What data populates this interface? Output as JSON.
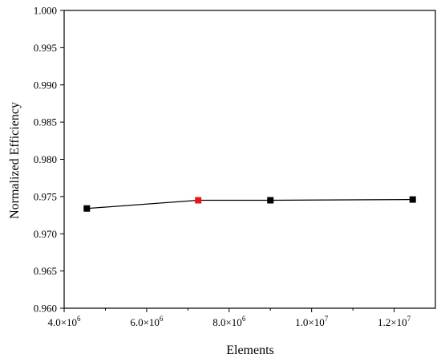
{
  "chart_data": {
    "type": "line",
    "title": "",
    "xlabel": "Elements",
    "ylabel": "Normalized Efficiency",
    "xlim": [
      4000000,
      13000000
    ],
    "ylim": [
      0.96,
      1.0
    ],
    "x_ticks": [
      {
        "value": 4000000,
        "mantissa": "4.0",
        "exp": "6"
      },
      {
        "value": 6000000,
        "mantissa": "6.0",
        "exp": "6"
      },
      {
        "value": 8000000,
        "mantissa": "8.0",
        "exp": "6"
      },
      {
        "value": 10000000,
        "mantissa": "1.0",
        "exp": "7"
      },
      {
        "value": 12000000,
        "mantissa": "1.2",
        "exp": "7"
      }
    ],
    "y_ticks": [
      {
        "value": 0.96,
        "label": "0.960"
      },
      {
        "value": 0.965,
        "label": "0.965"
      },
      {
        "value": 0.97,
        "label": "0.970"
      },
      {
        "value": 0.975,
        "label": "0.975"
      },
      {
        "value": 0.98,
        "label": "0.980"
      },
      {
        "value": 0.985,
        "label": "0.985"
      },
      {
        "value": 0.99,
        "label": "0.990"
      },
      {
        "value": 0.995,
        "label": "0.995"
      },
      {
        "value": 1.0,
        "label": "1.000"
      }
    ],
    "grid": false,
    "series": [
      {
        "x": [
          4550000,
          7250000,
          9000000,
          12450000
        ],
        "y": [
          0.9734,
          0.9745,
          0.9745,
          0.9746
        ],
        "marker_colors": [
          "#000000",
          "#e8141b",
          "#000000",
          "#000000"
        ]
      }
    ]
  }
}
